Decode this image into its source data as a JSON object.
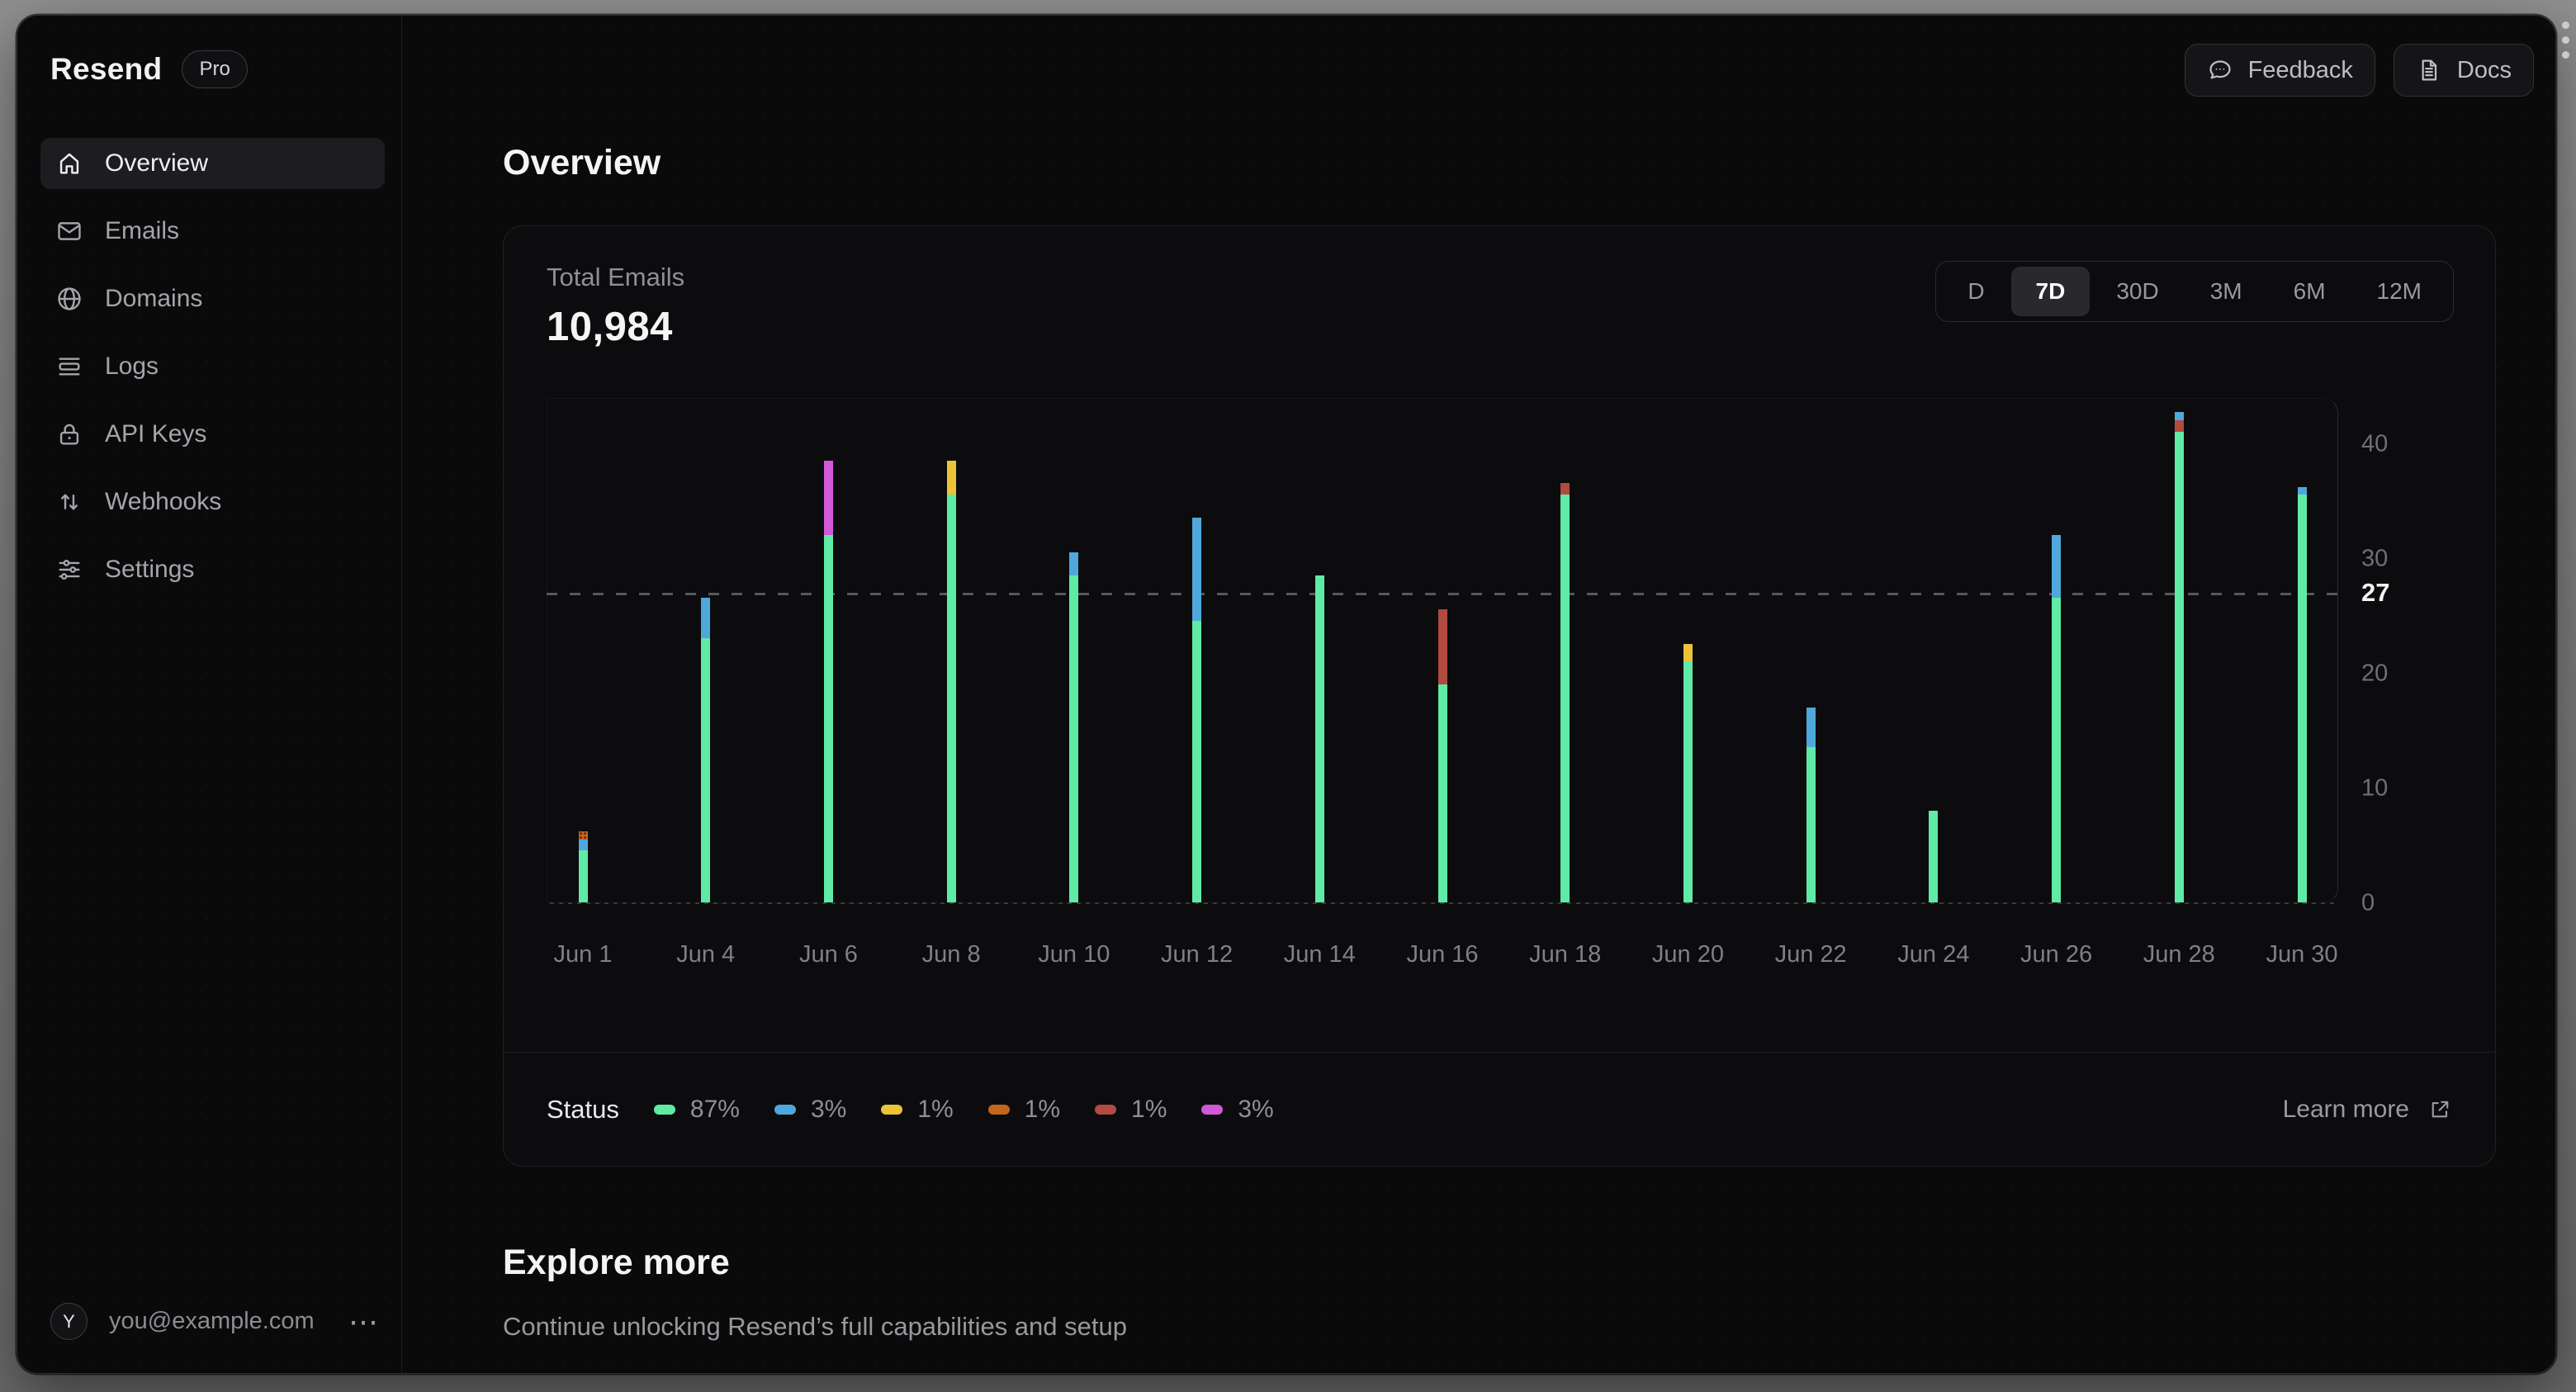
{
  "sidebar": {
    "logo": "Resend",
    "plan_badge": "Pro",
    "items": [
      {
        "label": "Overview",
        "icon": "home",
        "active": true
      },
      {
        "label": "Emails",
        "icon": "mail",
        "active": false
      },
      {
        "label": "Domains",
        "icon": "globe",
        "active": false
      },
      {
        "label": "Logs",
        "icon": "logs",
        "active": false
      },
      {
        "label": "API Keys",
        "icon": "lock",
        "active": false
      },
      {
        "label": "Webhooks",
        "icon": "arrows-up-down",
        "active": false
      },
      {
        "label": "Settings",
        "icon": "sliders",
        "active": false
      }
    ],
    "user": {
      "avatar_initial": "Y",
      "email": "you@example.com"
    }
  },
  "topbar": {
    "buttons": [
      {
        "label": "Feedback",
        "icon": "speech-bubble"
      },
      {
        "label": "Docs",
        "icon": "document"
      }
    ]
  },
  "page": {
    "title": "Overview"
  },
  "metric": {
    "label": "Total Emails",
    "value": "10,984"
  },
  "range_selector": {
    "options": [
      "D",
      "7D",
      "30D",
      "3M",
      "6M",
      "12M"
    ],
    "active": "7D"
  },
  "legend": {
    "title": "Status",
    "items": [
      {
        "color": "#5FEBA6",
        "label": "87%"
      },
      {
        "color": "#4FA8DB",
        "label": "3%"
      },
      {
        "color": "#EAC337",
        "label": "1%"
      },
      {
        "color": "#C4661C",
        "label": "1%",
        "pattern": "dots"
      },
      {
        "color": "#B14A3F",
        "label": "1%"
      },
      {
        "color": "#D158D6",
        "label": "3%"
      }
    ]
  },
  "learn_more": {
    "label": "Learn more",
    "icon": "external-link"
  },
  "explore": {
    "title": "Explore more",
    "subtitle": "Continue unlocking Resend’s full capabilities and setup"
  },
  "chart_data": {
    "type": "bar",
    "stacked": true,
    "title": "Total Emails",
    "xlabel": "",
    "ylabel": "",
    "categories": [
      "Jun 1",
      "Jun 4",
      "Jun 6",
      "Jun 8",
      "Jun 10",
      "Jun 12",
      "Jun 14",
      "Jun 16",
      "Jun 18",
      "Jun 20",
      "Jun 22",
      "Jun 24",
      "Jun 26",
      "Jun 28",
      "Jun 30"
    ],
    "series": [
      {
        "name": "green",
        "color": "#5FEBA6",
        "values": [
          4.5,
          23,
          32,
          35.5,
          28.5,
          24.5,
          28.5,
          19,
          35.5,
          21,
          13.5,
          8,
          26.5,
          41,
          35.5
        ]
      },
      {
        "name": "red",
        "color": "#B14A3F",
        "values": [
          0,
          0,
          0,
          0,
          0,
          0,
          0,
          6.5,
          1,
          0,
          0,
          0,
          0,
          1,
          0
        ]
      },
      {
        "name": "blue",
        "color": "#4FA8DB",
        "values": [
          1,
          3.5,
          0,
          0,
          2,
          9,
          0,
          0,
          0,
          0,
          3.5,
          0,
          5.5,
          0.7,
          0.7
        ]
      },
      {
        "name": "yellow",
        "color": "#EAC337",
        "values": [
          0,
          0,
          0,
          3,
          0,
          0,
          0,
          0,
          0,
          1.5,
          0,
          0,
          0,
          0,
          0
        ]
      },
      {
        "name": "orange",
        "color": "#C4661C",
        "pattern": "dots",
        "values": [
          0.7,
          0,
          0,
          0,
          0,
          0,
          0,
          0,
          0,
          0,
          0,
          0,
          0,
          0,
          0
        ]
      },
      {
        "name": "magenta",
        "color": "#D158D6",
        "values": [
          0,
          0,
          6.5,
          0,
          0,
          0,
          0,
          0,
          0,
          0,
          0,
          0,
          0,
          0,
          0
        ]
      }
    ],
    "average_line": {
      "value": 27,
      "label": "27"
    },
    "yticks": [
      0,
      10,
      20,
      30,
      40
    ],
    "ylim": [
      0,
      44
    ],
    "grid": false,
    "legend_position": "bottom"
  }
}
